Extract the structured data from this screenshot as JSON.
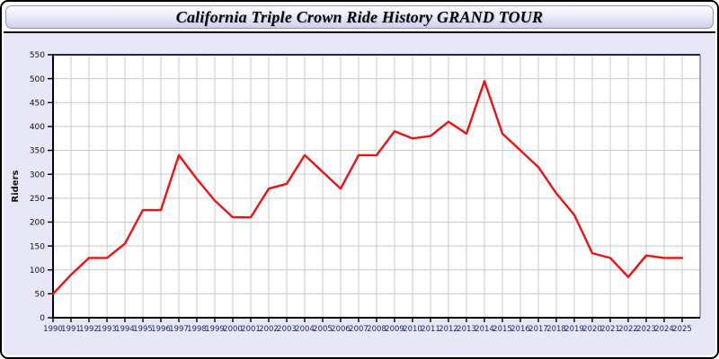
{
  "window": {
    "title": "California Triple Crown Ride History GRAND TOUR"
  },
  "colors": {
    "line": "#ee1111",
    "panel_background": "#e7e7f7",
    "plot_background": "#ffffff",
    "grid": "#c9c9c9",
    "plot_top_border": "#23235f",
    "axis": "#000000",
    "x_tick_label": "#1b1b6b",
    "y_tick_label": "#111111",
    "title_text": "#000000"
  },
  "chart_data": {
    "type": "line",
    "title": "California Triple Crown Ride History GRAND TOUR",
    "xlabel": "",
    "ylabel": "Riders",
    "ylim": [
      0,
      550
    ],
    "ytick_step": 50,
    "grid": true,
    "legend_position": "none",
    "x": [
      1990,
      1991,
      1992,
      1993,
      1994,
      1995,
      1996,
      1997,
      1998,
      1999,
      2000,
      2001,
      2002,
      2003,
      2004,
      2005,
      2006,
      2007,
      2008,
      2009,
      2010,
      2011,
      2012,
      2013,
      2014,
      2015,
      2016,
      2017,
      2018,
      2019,
      2020,
      2021,
      2022,
      2023,
      2024,
      2025
    ],
    "series": [
      {
        "name": "Riders",
        "color": "#ee1111",
        "values": [
          50,
          90,
          125,
          125,
          155,
          225,
          225,
          340,
          290,
          245,
          210,
          210,
          270,
          280,
          340,
          305,
          270,
          340,
          340,
          390,
          375,
          380,
          410,
          385,
          495,
          385,
          350,
          315,
          260,
          215,
          135,
          125,
          85,
          130,
          125,
          125
        ]
      }
    ]
  }
}
